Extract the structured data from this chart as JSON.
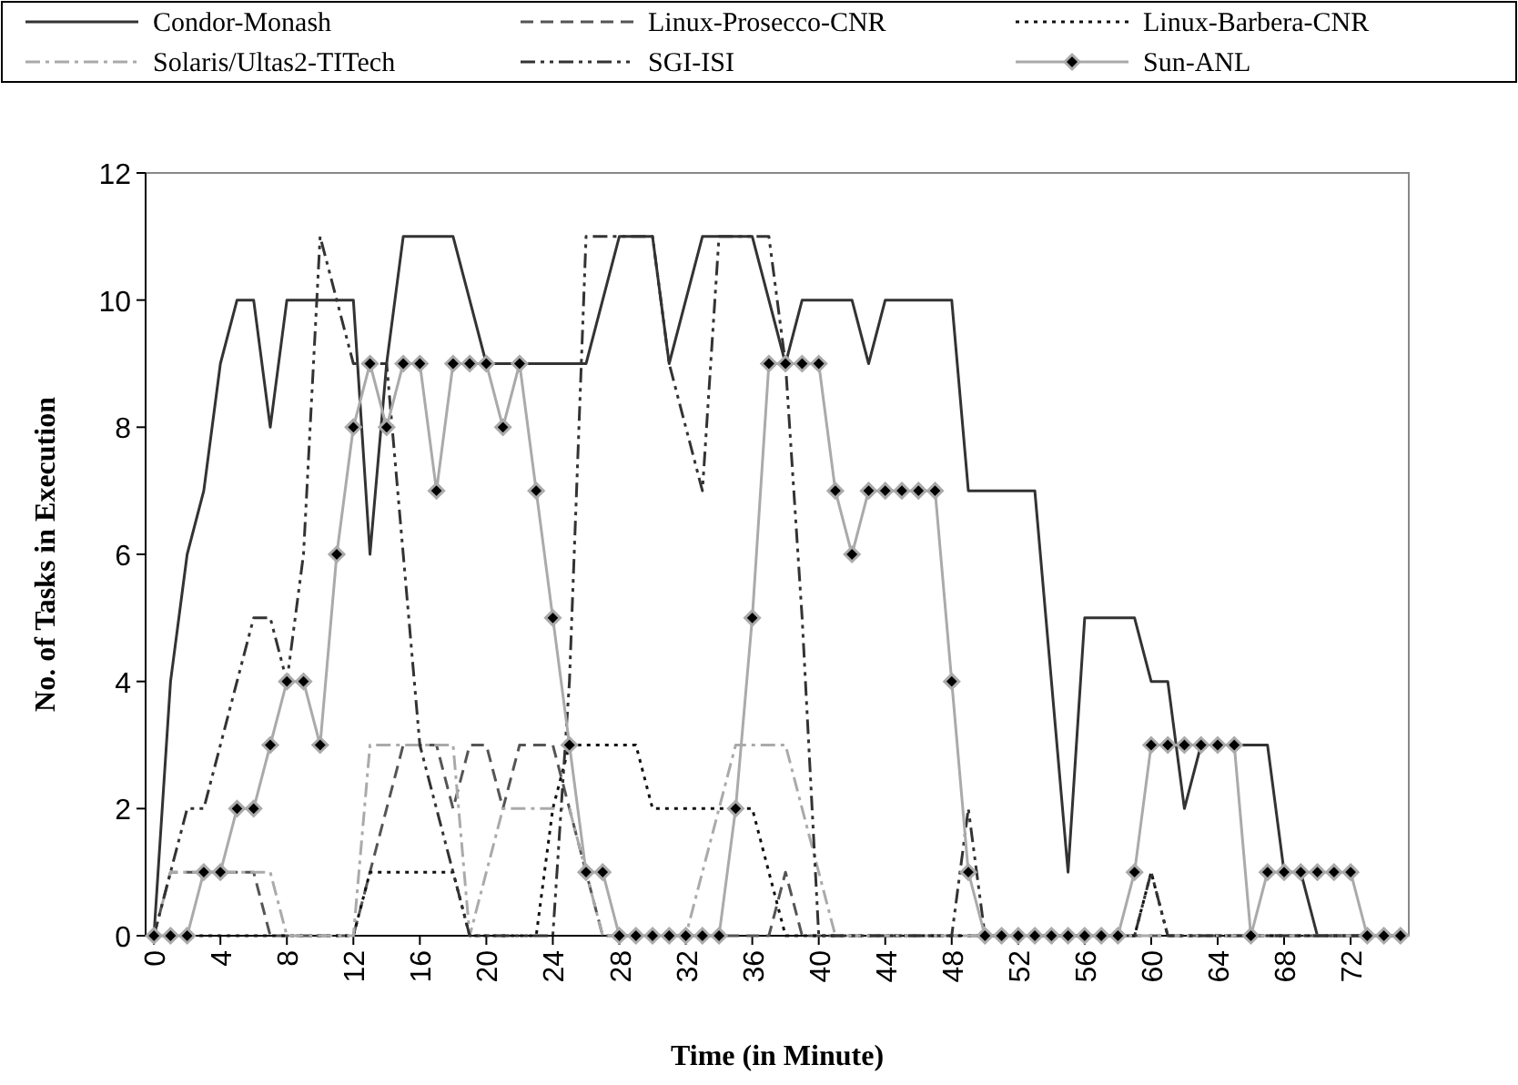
{
  "chart_data": {
    "type": "line",
    "xlabel": "Time (in Minute)",
    "ylabel": "No. of Tasks in Execution",
    "x": [
      0,
      1,
      2,
      3,
      4,
      5,
      6,
      7,
      8,
      9,
      10,
      11,
      12,
      13,
      14,
      15,
      16,
      17,
      18,
      19,
      20,
      21,
      22,
      23,
      24,
      25,
      26,
      27,
      28,
      29,
      30,
      31,
      32,
      33,
      34,
      35,
      36,
      37,
      38,
      39,
      40,
      41,
      42,
      43,
      44,
      45,
      46,
      47,
      48,
      49,
      50,
      51,
      52,
      53,
      54,
      55,
      56,
      57,
      58,
      59,
      60,
      61,
      62,
      63,
      64,
      65,
      66,
      67,
      68,
      69,
      70,
      71,
      72,
      73,
      74,
      75
    ],
    "xlim": [
      -0.5,
      75.5
    ],
    "xticks": [
      0,
      4,
      8,
      12,
      16,
      20,
      24,
      28,
      32,
      36,
      40,
      44,
      48,
      52,
      56,
      60,
      64,
      68,
      72
    ],
    "ylim": [
      0,
      12
    ],
    "yticks": [
      0,
      2,
      4,
      6,
      8,
      10,
      12
    ],
    "grid": false,
    "legend": "top",
    "marker": "none",
    "series": [
      {
        "name": "Condor-Monash",
        "color": "#333333",
        "line_style": "solid",
        "values": [
          0,
          4,
          6,
          7,
          9,
          10,
          10,
          8,
          10,
          10,
          10,
          10,
          10,
          6,
          9,
          11,
          11,
          11,
          11,
          10,
          9,
          9,
          9,
          9,
          9,
          9,
          9,
          10,
          11,
          11,
          11,
          9,
          10,
          11,
          11,
          11,
          11,
          10,
          9,
          10,
          10,
          10,
          10,
          9,
          10,
          10,
          10,
          10,
          10,
          7,
          7,
          7,
          7,
          7,
          4,
          1,
          5,
          5,
          5,
          5,
          4,
          4,
          2,
          3,
          3,
          3,
          3,
          3,
          1,
          1,
          0,
          0,
          0,
          0,
          0,
          0
        ]
      },
      {
        "name": "Linux-Prosecco-CNR",
        "color": "#555555",
        "line_style": "dashed",
        "values": [
          0,
          1,
          1,
          1,
          1,
          1,
          1,
          0,
          0,
          0,
          0,
          0,
          0,
          1,
          2,
          3,
          3,
          3,
          2,
          3,
          3,
          2,
          3,
          3,
          3,
          2,
          1,
          0,
          0,
          0,
          0,
          0,
          0,
          0,
          0,
          0,
          0,
          0,
          1,
          0,
          0,
          0,
          0,
          0,
          0,
          0,
          0,
          0,
          0,
          0,
          0,
          0,
          0,
          0,
          0,
          0,
          0,
          0,
          0,
          0,
          0,
          0,
          0,
          0,
          0,
          0,
          0,
          0,
          0,
          0,
          0,
          0,
          0,
          0,
          0,
          0
        ]
      },
      {
        "name": "Linux-Barbera-CNR",
        "color": "#111111",
        "line_style": "dotted",
        "values": [
          0,
          0,
          0,
          0,
          0,
          0,
          0,
          0,
          0,
          0,
          0,
          0,
          0,
          1,
          1,
          1,
          1,
          1,
          1,
          0,
          0,
          0,
          0,
          0,
          2,
          3,
          3,
          3,
          3,
          3,
          2,
          2,
          2,
          2,
          2,
          2,
          2,
          1,
          0,
          0,
          0,
          0,
          0,
          0,
          0,
          0,
          0,
          0,
          0,
          0,
          0,
          0,
          0,
          0,
          0,
          0,
          0,
          0,
          0,
          0,
          1,
          0,
          0,
          0,
          0,
          0,
          0,
          0,
          0,
          0,
          0,
          0,
          0,
          0,
          0,
          0
        ]
      },
      {
        "name": "Solaris/Ultas2-TITech",
        "color": "#aaaaaa",
        "line_style": "dashdot",
        "values": [
          0,
          1,
          1,
          1,
          1,
          1,
          1,
          1,
          0,
          0,
          0,
          0,
          0,
          3,
          3,
          3,
          3,
          3,
          3,
          0,
          1,
          2,
          2,
          2,
          2,
          2,
          1,
          0,
          0,
          0,
          0,
          0,
          0,
          1,
          2,
          3,
          3,
          3,
          3,
          2,
          1,
          0,
          0,
          0,
          0,
          0,
          0,
          0,
          0,
          0,
          0,
          0,
          0,
          0,
          0,
          0,
          0,
          0,
          0,
          0,
          0,
          0,
          0,
          0,
          0,
          0,
          0,
          0,
          0,
          0,
          0,
          0,
          0,
          0,
          0,
          0
        ]
      },
      {
        "name": "SGI-ISI",
        "color": "#333333",
        "line_style": "dashdotdot",
        "values": [
          0,
          1,
          2,
          2,
          3,
          4,
          5,
          5,
          4,
          6,
          11,
          10,
          9,
          9,
          9,
          6,
          3,
          2,
          1,
          0,
          0,
          0,
          0,
          0,
          0,
          4,
          11,
          11,
          11,
          11,
          11,
          9,
          8,
          7,
          11,
          11,
          11,
          11,
          9,
          5,
          0,
          0,
          0,
          0,
          0,
          0,
          0,
          0,
          0,
          2,
          0,
          0,
          0,
          0,
          0,
          0,
          0,
          0,
          0,
          0,
          1,
          0,
          0,
          0,
          0,
          0,
          0,
          0,
          0,
          0,
          0,
          0,
          0,
          0,
          0,
          0
        ]
      },
      {
        "name": "Sun-ANL",
        "color": "#aaaaaa",
        "line_style": "solid",
        "marker": "diamond",
        "values": [
          0,
          0,
          0,
          1,
          1,
          2,
          2,
          3,
          4,
          4,
          3,
          6,
          8,
          9,
          8,
          9,
          9,
          7,
          9,
          9,
          9,
          8,
          9,
          7,
          5,
          3,
          1,
          1,
          0,
          0,
          0,
          0,
          0,
          0,
          0,
          2,
          5,
          9,
          9,
          9,
          9,
          7,
          6,
          7,
          7,
          7,
          7,
          7,
          4,
          1,
          0,
          0,
          0,
          0,
          0,
          0,
          0,
          0,
          0,
          1,
          3,
          3,
          3,
          3,
          3,
          3,
          0,
          1,
          1,
          1,
          1,
          1,
          1,
          0,
          0,
          0
        ]
      }
    ]
  }
}
